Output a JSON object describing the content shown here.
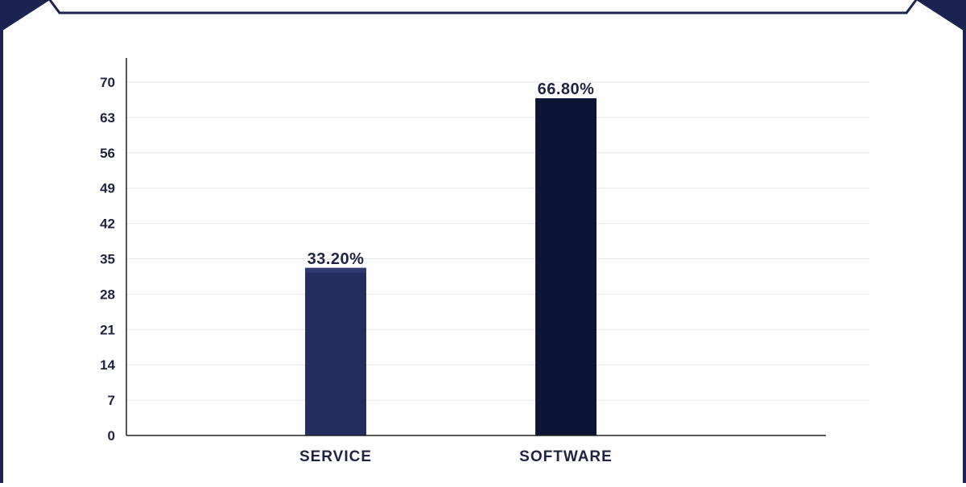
{
  "colors": {
    "frame": "#1b2450",
    "service_bar": "#242d5f",
    "service_bar_shade": "#2f3a72",
    "software_bar": "#0c1535",
    "grid": "#e6e6e6",
    "axis": "#222222",
    "text": "#1f2340"
  },
  "chart_data": {
    "type": "bar",
    "title": "",
    "xlabel": "",
    "ylabel": "",
    "categories": [
      "SERVICE",
      "SOFTWARE"
    ],
    "values": [
      33.2,
      66.8
    ],
    "data_labels": [
      "33.20%",
      "66.80%"
    ],
    "yticks": [
      0,
      7,
      14,
      21,
      28,
      35,
      42,
      49,
      56,
      63,
      70
    ],
    "ylim": [
      0,
      70
    ],
    "grid": true,
    "legend": "none"
  }
}
